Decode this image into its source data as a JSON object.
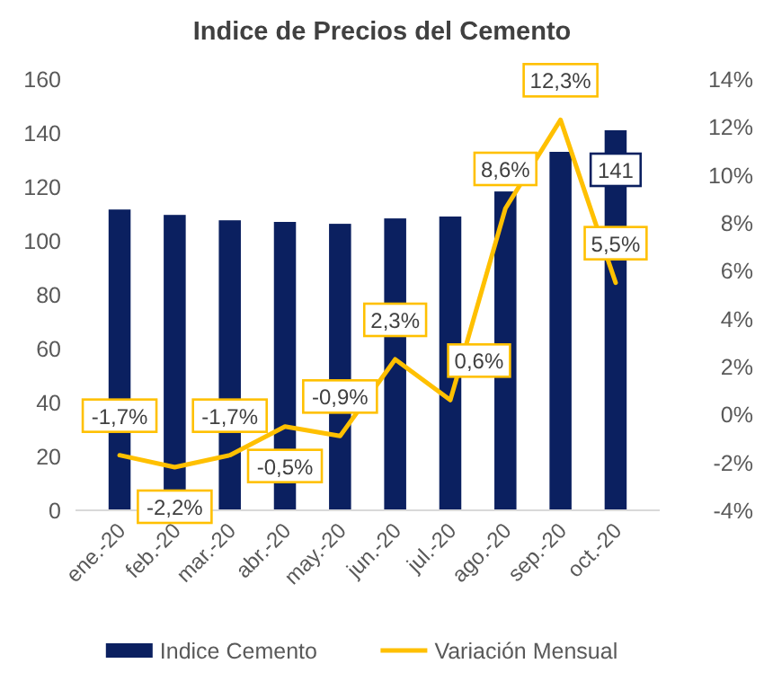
{
  "chart_data": {
    "type": "bar",
    "title": "Indice de Precios del Cemento",
    "categories": [
      "ene.-20",
      "feb.-20",
      "mar.-20",
      "abr.-20",
      "may.-20",
      "jun.-20",
      "jul.-20",
      "ago.-20",
      "sep.-20",
      "oct.-20"
    ],
    "series": [
      {
        "name": "Indice Cemento",
        "color": "#0b2060",
        "values": [
          111.6,
          109.6,
          107.6,
          107.0,
          106.3,
          108.3,
          109.0,
          118.3,
          133.0,
          141
        ],
        "value_labels": [
          null,
          null,
          null,
          null,
          null,
          null,
          null,
          null,
          null,
          "141"
        ]
      },
      {
        "name": "Variación Mensual",
        "type": "line",
        "axis": "y2",
        "color": "#ffc000",
        "values": [
          -1.7,
          -2.2,
          -1.7,
          -0.5,
          -0.9,
          2.3,
          0.6,
          8.6,
          12.3,
          5.5
        ],
        "value_labels": [
          "-1,7%",
          "-2,2%",
          "-1,7%",
          "-0,5%",
          "-0,9%",
          "2,3%",
          "0,6%",
          "8,6%",
          "12,3%",
          "5,5%"
        ]
      }
    ],
    "ylim": [
      0,
      160
    ],
    "yticks": [
      0,
      20,
      40,
      60,
      80,
      100,
      120,
      140,
      160
    ],
    "y2lim": [
      -4,
      14
    ],
    "y2ticks": [
      {
        "value": -4,
        "label": "-4%"
      },
      {
        "value": -2,
        "label": "-2%"
      },
      {
        "value": 0,
        "label": "0%"
      },
      {
        "value": 2,
        "label": "2%"
      },
      {
        "value": 4,
        "label": "4%"
      },
      {
        "value": 6,
        "label": "6%"
      },
      {
        "value": 8,
        "label": "8%"
      },
      {
        "value": 10,
        "label": "10%"
      },
      {
        "value": 12,
        "label": "12%"
      },
      {
        "value": 14,
        "label": "14%"
      }
    ],
    "grid": false,
    "legend": "bottom"
  }
}
